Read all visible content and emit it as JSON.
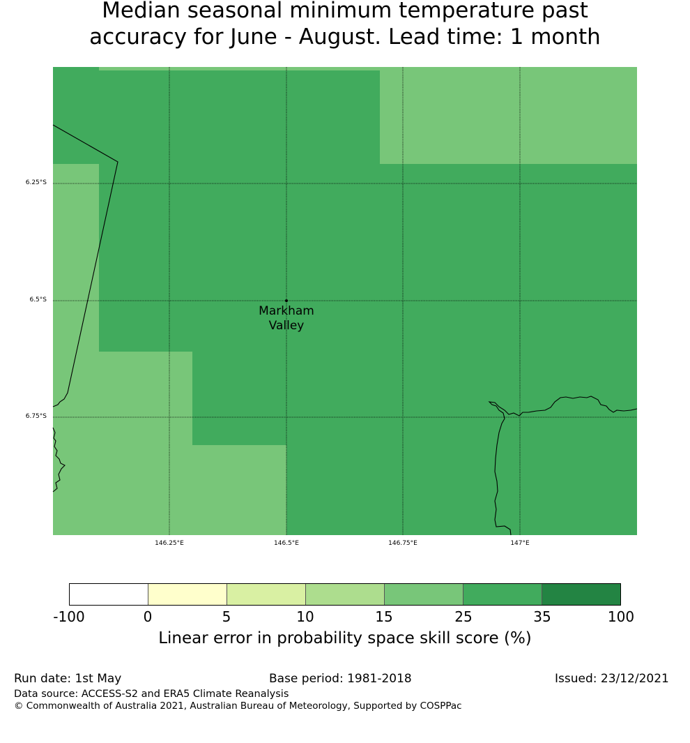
{
  "title_line1": "Median seasonal minimum temperature past",
  "title_line2": "accuracy for June - August. Lead time: 1 month",
  "map": {
    "lat_labels": [
      "6.25°S",
      "6.5°S",
      "6.75°S"
    ],
    "lon_labels": [
      "146.25°E",
      "146.5°E",
      "146.75°E",
      "147°E"
    ],
    "place_line1": "Markham",
    "place_line2": "Valley",
    "colors": {
      "light": "#78c679",
      "mid": "#41ab5d"
    }
  },
  "colorbar": {
    "ticks": [
      "-100",
      "0",
      "5",
      "10",
      "15",
      "25",
      "35",
      "100"
    ],
    "colors": [
      "#ffffff",
      "#ffffcc",
      "#d9f0a3",
      "#addd8e",
      "#78c679",
      "#41ab5d",
      "#238443"
    ],
    "label": "Linear error in probability space skill score (%)"
  },
  "footer": {
    "run_date": "Run date: 1st May",
    "base_period": "Base period: 1981-2018",
    "issued": "Issued: 23/12/2021",
    "data_source": "Data source: ACCESS-S2 and ERA5 Climate Reanalysis",
    "copyright": "© Commonwealth of Australia 2021, Australian Bureau of Meteorology, Supported by COSPPac"
  }
}
